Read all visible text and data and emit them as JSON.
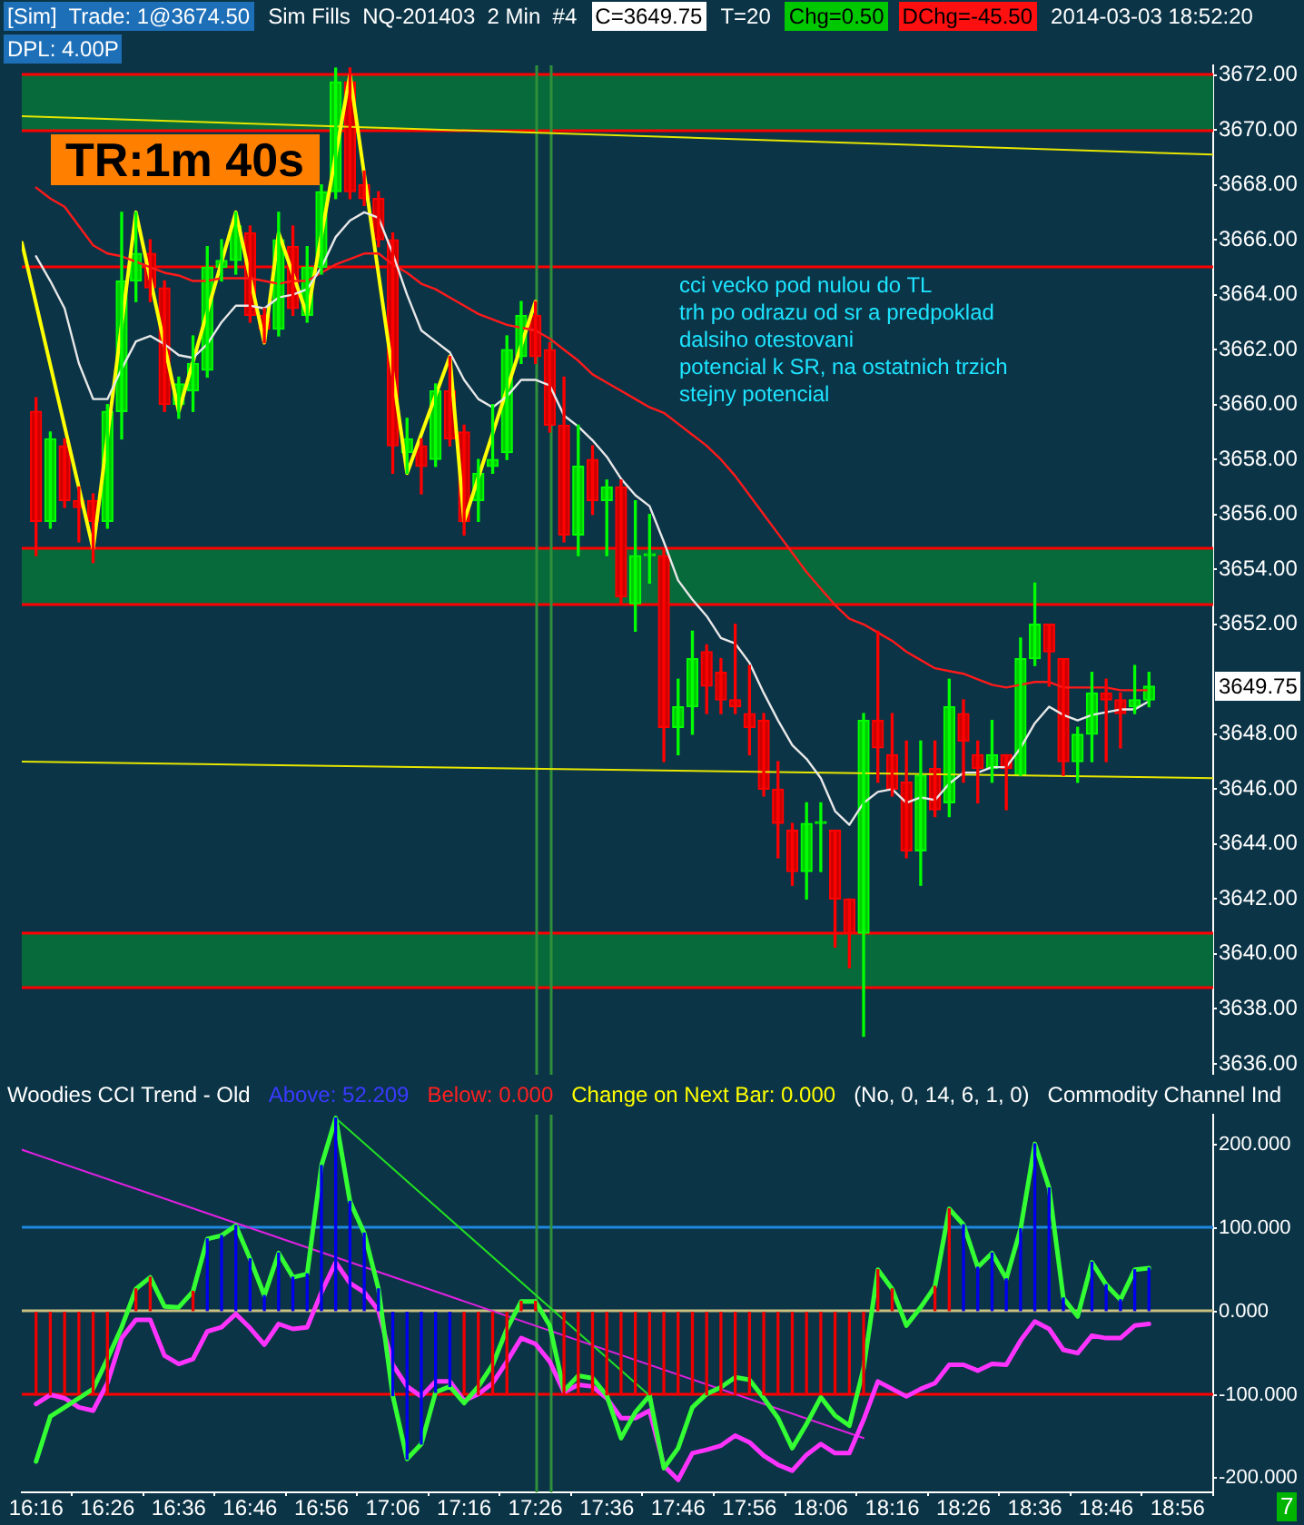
{
  "chart_data": [
    {
      "type": "candlestick",
      "x": [
        "2014-03-03T16:16",
        "2014-03-03T16:18",
        "2014-03-03T16:20",
        "2014-03-03T16:22",
        "2014-03-03T16:24",
        "2014-03-03T16:26",
        "2014-03-03T16:28",
        "2014-03-03T16:30",
        "2014-03-03T16:32",
        "2014-03-03T16:34",
        "2014-03-03T16:36",
        "2014-03-03T16:38",
        "2014-03-03T16:40",
        "2014-03-03T16:42",
        "2014-03-03T16:44",
        "2014-03-03T16:46",
        "2014-03-03T16:48",
        "2014-03-03T16:50",
        "2014-03-03T16:52",
        "2014-03-03T16:54",
        "2014-03-03T16:56",
        "2014-03-03T16:58",
        "2014-03-03T17:00",
        "2014-03-03T17:02",
        "2014-03-03T17:04",
        "2014-03-03T17:06",
        "2014-03-03T17:08",
        "2014-03-03T17:10",
        "2014-03-03T17:12",
        "2014-03-03T17:14",
        "2014-03-03T17:16",
        "2014-03-03T17:18",
        "2014-03-03T17:20",
        "2014-03-03T17:22",
        "2014-03-03T17:24",
        "2014-03-03T17:26",
        "2014-03-03T17:28",
        "2014-03-03T17:30",
        "2014-03-03T17:32",
        "2014-03-03T17:34",
        "2014-03-03T17:36",
        "2014-03-03T17:38",
        "2014-03-03T17:40",
        "2014-03-03T17:42",
        "2014-03-03T17:44",
        "2014-03-03T17:46",
        "2014-03-03T17:48",
        "2014-03-03T17:50",
        "2014-03-03T17:52",
        "2014-03-03T17:54",
        "2014-03-03T17:56",
        "2014-03-03T17:58",
        "2014-03-03T18:00",
        "2014-03-03T18:02",
        "2014-03-03T18:04",
        "2014-03-03T18:06",
        "2014-03-03T18:08",
        "2014-03-03T18:10",
        "2014-03-03T18:12",
        "2014-03-03T18:14",
        "2014-03-03T18:16",
        "2014-03-03T18:18",
        "2014-03-03T18:20",
        "2014-03-03T18:22",
        "2014-03-03T18:24",
        "2014-03-03T18:26",
        "2014-03-03T18:28",
        "2014-03-03T18:30",
        "2014-03-03T18:32",
        "2014-03-03T18:34",
        "2014-03-03T18:36",
        "2014-03-03T18:38",
        "2014-03-03T18:40",
        "2014-03-03T18:42",
        "2014-03-03T18:44",
        "2014-03-03T18:46",
        "2014-03-03T18:48",
        "2014-03-03T18:50",
        "2014-03-03T18:52"
      ],
      "ohlc": [
        [
          3659.75,
          3660.25,
          3654.5,
          3655.75
        ],
        [
          3655.75,
          3659.0,
          3655.5,
          3658.75
        ],
        [
          3658.5,
          3658.75,
          3656.25,
          3656.5
        ],
        [
          3656.5,
          3657.0,
          3655.0,
          3656.25
        ],
        [
          3656.5,
          3656.75,
          3654.25,
          3655.75
        ],
        [
          3655.75,
          3660.0,
          3655.5,
          3659.75
        ],
        [
          3659.75,
          3667.0,
          3658.75,
          3664.5
        ],
        [
          3664.5,
          3667.0,
          3663.75,
          3665.5
        ],
        [
          3665.5,
          3666.0,
          3663.75,
          3664.25
        ],
        [
          3664.25,
          3664.5,
          3659.75,
          3660.0
        ],
        [
          3660.0,
          3661.0,
          3659.5,
          3660.75
        ],
        [
          3660.5,
          3662.5,
          3659.75,
          3661.5
        ],
        [
          3661.25,
          3665.75,
          3661.0,
          3665.0
        ],
        [
          3665.0,
          3666.0,
          3664.5,
          3665.25
        ],
        [
          3665.25,
          3667.0,
          3664.75,
          3666.5
        ],
        [
          3666.25,
          3666.5,
          3663.0,
          3663.25
        ],
        [
          3663.25,
          3663.5,
          3662.25,
          3662.75
        ],
        [
          3662.75,
          3667.0,
          3662.5,
          3666.0
        ],
        [
          3665.75,
          3666.5,
          3663.25,
          3663.5
        ],
        [
          3663.25,
          3665.75,
          3663.0,
          3665.0
        ],
        [
          3665.0,
          3668.0,
          3664.75,
          3667.75
        ],
        [
          3667.75,
          3672.25,
          3667.5,
          3671.75
        ],
        [
          3671.75,
          3672.25,
          3667.5,
          3667.75
        ],
        [
          3668.0,
          3668.5,
          3667.25,
          3667.5
        ],
        [
          3667.5,
          3667.75,
          3665.75,
          3666.0
        ],
        [
          3666.0,
          3666.25,
          3657.5,
          3658.5
        ],
        [
          3658.25,
          3659.5,
          3657.5,
          3658.75
        ],
        [
          3658.5,
          3658.75,
          3656.75,
          3657.75
        ],
        [
          3658.0,
          3660.75,
          3657.75,
          3660.5
        ],
        [
          3660.5,
          3661.75,
          3658.5,
          3658.75
        ],
        [
          3659.0,
          3659.25,
          3655.25,
          3655.75
        ],
        [
          3656.5,
          3658.0,
          3655.75,
          3657.5
        ],
        [
          3657.75,
          3660.0,
          3657.5,
          3658.0
        ],
        [
          3658.25,
          3662.5,
          3658.0,
          3662.0
        ],
        [
          3661.75,
          3663.75,
          3661.5,
          3663.25
        ],
        [
          3663.25,
          3663.75,
          3661.5,
          3661.75
        ],
        [
          3662.0,
          3662.25,
          3659.0,
          3659.25
        ],
        [
          3659.25,
          3661.0,
          3655.0,
          3655.25
        ],
        [
          3655.25,
          3659.25,
          3654.5,
          3657.75
        ],
        [
          3658.0,
          3658.5,
          3656.0,
          3656.5
        ],
        [
          3656.5,
          3657.25,
          3654.5,
          3657.0
        ],
        [
          3657.0,
          3657.25,
          3652.75,
          3653.0
        ],
        [
          3652.75,
          3656.5,
          3651.75,
          3654.5
        ],
        [
          3654.5,
          3656.0,
          3653.5,
          3654.5
        ],
        [
          3654.5,
          3654.75,
          3647.0,
          3648.25
        ],
        [
          3648.25,
          3650.0,
          3647.25,
          3649.0
        ],
        [
          3649.0,
          3651.75,
          3648.0,
          3650.75
        ],
        [
          3651.0,
          3651.25,
          3648.75,
          3649.75
        ],
        [
          3650.25,
          3650.75,
          3648.75,
          3649.25
        ],
        [
          3649.25,
          3652.0,
          3648.75,
          3649.0
        ],
        [
          3648.75,
          3650.5,
          3647.25,
          3648.25
        ],
        [
          3648.5,
          3648.75,
          3645.75,
          3646.0
        ],
        [
          3646.0,
          3647.0,
          3643.5,
          3644.75
        ],
        [
          3644.5,
          3644.75,
          3642.5,
          3643.0
        ],
        [
          3643.0,
          3645.5,
          3642.0,
          3644.75
        ],
        [
          3644.75,
          3645.5,
          3643.0,
          3644.75
        ],
        [
          3644.5,
          3644.5,
          3640.25,
          3642.0
        ],
        [
          3642.0,
          3642.0,
          3639.5,
          3640.75
        ],
        [
          3640.75,
          3648.75,
          3637.0,
          3648.5
        ],
        [
          3648.5,
          3651.75,
          3646.25,
          3647.5
        ],
        [
          3647.25,
          3648.75,
          3645.75,
          3646.0
        ],
        [
          3646.25,
          3647.75,
          3643.5,
          3643.75
        ],
        [
          3643.75,
          3647.75,
          3642.5,
          3646.5
        ],
        [
          3646.75,
          3647.75,
          3645.0,
          3645.25
        ],
        [
          3645.5,
          3650.0,
          3645.0,
          3649.0
        ],
        [
          3648.75,
          3649.25,
          3646.25,
          3647.75
        ],
        [
          3647.25,
          3647.75,
          3645.5,
          3646.75
        ],
        [
          3646.75,
          3648.5,
          3646.25,
          3647.25
        ],
        [
          3647.25,
          3647.25,
          3645.25,
          3646.75
        ],
        [
          3646.5,
          3651.5,
          3646.5,
          3650.75
        ],
        [
          3650.75,
          3653.5,
          3650.5,
          3652.0
        ],
        [
          3652.0,
          3652.0,
          3649.75,
          3651.0
        ],
        [
          3650.75,
          3650.75,
          3646.5,
          3647.0
        ],
        [
          3647.0,
          3648.25,
          3646.25,
          3648.0
        ],
        [
          3648.0,
          3650.25,
          3647.0,
          3649.5
        ],
        [
          3649.5,
          3650.0,
          3647.0,
          3649.25
        ],
        [
          3649.25,
          3649.5,
          3647.5,
          3648.75
        ],
        [
          3649.0,
          3650.5,
          3648.75,
          3649.25
        ],
        [
          3649.25,
          3650.25,
          3649.0,
          3649.75
        ]
      ],
      "colors": [
        "#ff0000",
        "#00ff00",
        "#ff0000",
        "#ff0000",
        "#ff0000",
        "#00ff00",
        "#00ff00",
        "#00ff00",
        "#ff0000",
        "#ff0000",
        "#00ff00",
        "#00ff00",
        "#00ff00",
        "#00ff00",
        "#00ff00",
        "#ff0000",
        "#ff0000",
        "#00ff00",
        "#ff0000",
        "#00ff00",
        "#00ff00",
        "#00ff00",
        "#ff0000",
        "#ff0000",
        "#ff0000",
        "#ff0000",
        "#00ff00",
        "#ff0000",
        "#00ff00",
        "#ff0000",
        "#ff0000",
        "#00ff00",
        "#00ff00",
        "#00ff00",
        "#00ff00",
        "#ff0000",
        "#ff0000",
        "#ff0000",
        "#00ff00",
        "#ff0000",
        "#00ff00",
        "#ff0000",
        "#00ff00",
        "#00ff00",
        "#ff0000",
        "#00ff00",
        "#00ff00",
        "#ff0000",
        "#ff0000",
        "#ff0000",
        "#ff0000",
        "#ff0000",
        "#ff0000",
        "#ff0000",
        "#00ff00",
        "#00ff00",
        "#ff0000",
        "#ff0000",
        "#00ff00",
        "#ff0000",
        "#ff0000",
        "#ff0000",
        "#00ff00",
        "#ff0000",
        "#00ff00",
        "#ff0000",
        "#ff0000",
        "#00ff00",
        "#ff0000",
        "#00ff00",
        "#00ff00",
        "#ff0000",
        "#ff0000",
        "#00ff00",
        "#00ff00",
        "#ff0000",
        "#ff0000",
        "#00ff00",
        "#00ff00"
      ],
      "series": [
        {
          "type": "line",
          "color": "#e8e8e8",
          "values": [
            3665.4,
            3664.5,
            3663.5,
            3661.5,
            3660.2,
            3660.2,
            3661.3,
            3662.3,
            3662.5,
            3662.2,
            3661.8,
            3661.7,
            3662.2,
            3663.0,
            3663.6,
            3663.6,
            3663.5,
            3663.9,
            3664.0,
            3664.2,
            3665.0,
            3666.1,
            3666.7,
            3667.0,
            3666.8,
            3665.5,
            3664.0,
            3662.7,
            3662.3,
            3661.9,
            3660.9,
            3660.2,
            3659.9,
            3660.3,
            3660.9,
            3660.9,
            3660.7,
            3659.6,
            3659.2,
            3658.7,
            3658.1,
            3657.3,
            3656.7,
            3656.3,
            3655.0,
            3653.6,
            3652.9,
            3652.3,
            3651.5,
            3651.3,
            3650.6,
            3649.5,
            3648.5,
            3647.6,
            3647.1,
            3646.4,
            3645.2,
            3644.7,
            3645.5,
            3645.9,
            3646.0,
            3645.5,
            3645.7,
            3645.6,
            3646.2,
            3646.6,
            3646.6,
            3646.8,
            3646.8,
            3647.5,
            3648.4,
            3649.0,
            3648.7,
            3648.5,
            3648.7,
            3648.8,
            3648.9,
            3648.9,
            3649.2
          ]
        },
        {
          "type": "line",
          "color": "#ff1a1a",
          "values": [
            3667.9,
            3667.5,
            3667.2,
            3666.5,
            3665.8,
            3665.5,
            3665.4,
            3665.2,
            3665.0,
            3664.8,
            3664.7,
            3664.5,
            3664.5,
            3664.6,
            3664.6,
            3664.6,
            3664.5,
            3664.4,
            3664.5,
            3664.5,
            3664.8,
            3665.1,
            3665.3,
            3665.5,
            3665.5,
            3665.1,
            3664.8,
            3664.4,
            3664.2,
            3663.9,
            3663.6,
            3663.3,
            3663.1,
            3662.9,
            3662.8,
            3662.7,
            3662.4,
            3662.0,
            3661.6,
            3661.1,
            3660.8,
            3660.5,
            3660.2,
            3659.9,
            3659.7,
            3659.3,
            3658.9,
            3658.5,
            3658.0,
            3657.4,
            3656.7,
            3656.0,
            3655.3,
            3654.6,
            3653.9,
            3653.3,
            3652.7,
            3652.2,
            3652.0,
            3651.7,
            3651.4,
            3651.0,
            3650.7,
            3650.4,
            3650.3,
            3650.2,
            3650.0,
            3649.8,
            3649.7,
            3649.8,
            3649.9,
            3649.9,
            3649.7,
            3649.7,
            3649.7,
            3649.7,
            3649.6,
            3649.6,
            3649.6
          ]
        },
        {
          "type": "line",
          "color": "#ffff00",
          "x": [
            "2014-03-03T16:14",
            "2014-03-03T16:24",
            "2014-03-03T16:30",
            "2014-03-03T16:36",
            "2014-03-03T16:44",
            "2014-03-03T16:48",
            "2014-03-03T16:50",
            "2014-03-03T16:54",
            "2014-03-03T17:00",
            "2014-03-03T17:08",
            "2014-03-03T17:14",
            "2014-03-03T17:16",
            "2014-03-03T17:26"
          ],
          "values": [
            3665.9,
            3654.75,
            3667.0,
            3659.75,
            3667.0,
            3662.25,
            3666.25,
            3663.25,
            3672.0,
            3657.5,
            3661.75,
            3655.75,
            3663.75
          ]
        },
        {
          "type": "line",
          "color": "#e6e600",
          "x": [
            "2014-03-03T16:14",
            "2014-03-03T19:01"
          ],
          "values": [
            3670.5,
            3669.1
          ]
        },
        {
          "type": "line",
          "color": "#e6e600",
          "x": [
            "2014-03-03T16:14",
            "2014-03-03T19:01"
          ],
          "values": [
            3647.0,
            3646.4
          ]
        }
      ],
      "bands": [
        {
          "axis": "y",
          "from": 3670,
          "to": 3672,
          "color": "#076a3a"
        },
        {
          "axis": "y",
          "from": 3652.75,
          "to": 3654.75,
          "color": "#076a3a"
        },
        {
          "axis": "y",
          "from": 3638.75,
          "to": 3640.75,
          "color": "#076a3a"
        }
      ],
      "ref_lines": [
        {
          "axis": "y",
          "value": 3665,
          "color": "#ff0000"
        },
        {
          "axis": "y",
          "value": 3672,
          "color": "#ff0000"
        },
        {
          "axis": "y",
          "value": 3670,
          "color": "#ff0000"
        },
        {
          "axis": "y",
          "value": 3654.75,
          "color": "#ff0000"
        },
        {
          "axis": "y",
          "value": 3652.75,
          "color": "#ff0000"
        },
        {
          "axis": "y",
          "value": 3640.75,
          "color": "#ff0000"
        },
        {
          "axis": "y",
          "value": 3638.75,
          "color": "#ff0000"
        },
        {
          "axis": "x",
          "value": "2014-03-03T17:26",
          "color": "#2f8f3a"
        },
        {
          "axis": "x",
          "value": "2014-03-03T17:28",
          "color": "#2f8f3a"
        }
      ],
      "xlim": [
        "2014-03-03T16:14",
        "2014-03-03T19:01"
      ],
      "ylim": [
        3635.6,
        3672.35
      ],
      "yticks": [
        {
          "value": 3636,
          "label": "3636.00"
        },
        {
          "value": 3638,
          "label": "3638.00"
        },
        {
          "value": 3640,
          "label": "3640.00"
        },
        {
          "value": 3642,
          "label": "3642.00"
        },
        {
          "value": 3644,
          "label": "3644.00"
        },
        {
          "value": 3646,
          "label": "3646.00"
        },
        {
          "value": 3648,
          "label": "3648.00"
        },
        {
          "value": 3652,
          "label": "3652.00"
        },
        {
          "value": 3654,
          "label": "3654.00"
        },
        {
          "value": 3656,
          "label": "3656.00"
        },
        {
          "value": 3658,
          "label": "3658.00"
        },
        {
          "value": 3660,
          "label": "3660.00"
        },
        {
          "value": 3662,
          "label": "3662.00"
        },
        {
          "value": 3664,
          "label": "3664.00"
        },
        {
          "value": 3666,
          "label": "3666.00"
        },
        {
          "value": 3668,
          "label": "3668.00"
        },
        {
          "value": 3670,
          "label": "3670.00"
        },
        {
          "value": 3672,
          "label": "3672.00"
        }
      ],
      "tick_labels": "y",
      "annotations": [
        "[Sim]  Trade: 1@3674.50",
        "Sim Fills  NQ-201403  2 Min  #4",
        "C=3649.75",
        "T=20",
        "Chg=0.50",
        "DChg=-45.50",
        "2014-03-03 18:52:20",
        "DPL: 4.00P",
        "TR:1m 40s",
        "cci vecko pod nulou do TL\ntrh po odrazu od sr a predpoklad\ndalsiho otestovani\npotencial k SR, na ostatnich trzich\nstejny potencial",
        "3649.75"
      ]
    },
    {
      "type": "line",
      "title": "Woodies CCI Trend - Old",
      "x": [
        "2014-03-03T16:16",
        "2014-03-03T16:18",
        "2014-03-03T16:20",
        "2014-03-03T16:22",
        "2014-03-03T16:24",
        "2014-03-03T16:26",
        "2014-03-03T16:28",
        "2014-03-03T16:30",
        "2014-03-03T16:32",
        "2014-03-03T16:34",
        "2014-03-03T16:36",
        "2014-03-03T16:38",
        "2014-03-03T16:40",
        "2014-03-03T16:42",
        "2014-03-03T16:44",
        "2014-03-03T16:46",
        "2014-03-03T16:48",
        "2014-03-03T16:50",
        "2014-03-03T16:52",
        "2014-03-03T16:54",
        "2014-03-03T16:56",
        "2014-03-03T16:58",
        "2014-03-03T17:00",
        "2014-03-03T17:02",
        "2014-03-03T17:04",
        "2014-03-03T17:06",
        "2014-03-03T17:08",
        "2014-03-03T17:10",
        "2014-03-03T17:12",
        "2014-03-03T17:14",
        "2014-03-03T17:16",
        "2014-03-03T17:18",
        "2014-03-03T17:20",
        "2014-03-03T17:22",
        "2014-03-03T17:24",
        "2014-03-03T17:26",
        "2014-03-03T17:28",
        "2014-03-03T17:30",
        "2014-03-03T17:32",
        "2014-03-03T17:34",
        "2014-03-03T17:36",
        "2014-03-03T17:38",
        "2014-03-03T17:40",
        "2014-03-03T17:42",
        "2014-03-03T17:44",
        "2014-03-03T17:46",
        "2014-03-03T17:48",
        "2014-03-03T17:50",
        "2014-03-03T17:52",
        "2014-03-03T17:54",
        "2014-03-03T17:56",
        "2014-03-03T17:58",
        "2014-03-03T18:00",
        "2014-03-03T18:02",
        "2014-03-03T18:04",
        "2014-03-03T18:06",
        "2014-03-03T18:08",
        "2014-03-03T18:10",
        "2014-03-03T18:12",
        "2014-03-03T18:14",
        "2014-03-03T18:16",
        "2014-03-03T18:18",
        "2014-03-03T18:20",
        "2014-03-03T18:22",
        "2014-03-03T18:24",
        "2014-03-03T18:26",
        "2014-03-03T18:28",
        "2014-03-03T18:30",
        "2014-03-03T18:32",
        "2014-03-03T18:34",
        "2014-03-03T18:36",
        "2014-03-03T18:38",
        "2014-03-03T18:40",
        "2014-03-03T18:42",
        "2014-03-03T18:44",
        "2014-03-03T18:46",
        "2014-03-03T18:48",
        "2014-03-03T18:50",
        "2014-03-03T18:52"
      ],
      "series": [
        {
          "type": "bar",
          "colors": [
            "#ee0000",
            "#ee0000",
            "#ee0000",
            "#ee0000",
            "#ee0000",
            "#ee0000",
            "#ee0000",
            "#ee0000",
            "#ee0000",
            "#ee0000",
            "#ee0000",
            "#ee0000",
            "#0000ee",
            "#0000ee",
            "#0000ee",
            "#0000ee",
            "#0000ee",
            "#0000ee",
            "#0000ee",
            "#0000ee",
            "#0000ee",
            "#0000ee",
            "#0000ee",
            "#0000ee",
            "#0000ee",
            "#0000ee",
            "#0000ee",
            "#0000ee",
            "#0000ee",
            "#0000ee",
            "#ee0000",
            "#ee0000",
            "#ee0000",
            "#ee0000",
            "#ee0000",
            "#ee0000",
            "#ee0000",
            "#ee0000",
            "#ee0000",
            "#ee0000",
            "#ee0000",
            "#ee0000",
            "#ee0000",
            "#ee0000",
            "#ee0000",
            "#ee0000",
            "#ee0000",
            "#ee0000",
            "#ee0000",
            "#ee0000",
            "#ee0000",
            "#ee0000",
            "#ee0000",
            "#ee0000",
            "#ee0000",
            "#ee0000",
            "#ee0000",
            "#ee0000",
            "#ee0000",
            "#ee0000",
            "#ee0000",
            "#ee0000",
            "#ee0000",
            "#ee0000",
            "#ee0000",
            "#0000ee",
            "#0000ee",
            "#0000ee",
            "#0000ee",
            "#0000ee",
            "#0000ee",
            "#0000ee",
            "#0000ee",
            "#0000ee",
            "#0000ee",
            "#0000ee",
            "#0000ee",
            "#0000ee",
            "#0000ee"
          ],
          "values": [
            -100,
            -100,
            -100,
            -100,
            -100,
            -100,
            null,
            27,
            41,
            null,
            null,
            24,
            87,
            91,
            103,
            63,
            19,
            70,
            41,
            45,
            175,
            232,
            132,
            94,
            27,
            -101,
            -177,
            -159,
            -97,
            -90,
            -100,
            -100,
            -100,
            -100,
            12,
            12,
            null,
            -100,
            -100,
            -100,
            -100,
            -100,
            -100,
            -100,
            -100,
            -100,
            -100,
            -100,
            -100,
            -100,
            -100,
            -100,
            -100,
            -100,
            -100,
            -100,
            -100,
            -100,
            -100,
            50,
            27,
            null,
            null,
            30,
            123,
            104,
            53,
            70,
            39,
            99,
            201,
            148,
            16,
            null,
            59,
            32,
            14,
            50,
            52
          ]
        },
        {
          "type": "line",
          "color": "#33ff33",
          "values": [
            -180,
            -126,
            -115,
            -104,
            -93,
            -57,
            -19,
            27,
            41,
            6,
            5,
            24,
            87,
            91,
            103,
            63,
            19,
            70,
            41,
            45,
            175,
            232,
            132,
            94,
            27,
            -101,
            -177,
            -159,
            -97,
            -90,
            -110,
            -90,
            -64,
            -21,
            12,
            12,
            -17,
            -95,
            -77,
            -80,
            -101,
            -152,
            -121,
            -101,
            -188,
            -164,
            -115,
            -99,
            -91,
            -79,
            -82,
            -104,
            -128,
            -164,
            -135,
            -103,
            -125,
            -137,
            -68,
            50,
            27,
            -17,
            5,
            30,
            123,
            104,
            53,
            70,
            39,
            99,
            201,
            148,
            16,
            -6,
            59,
            32,
            14,
            50,
            52
          ]
        },
        {
          "type": "line",
          "color": "#ff33ff",
          "values": [
            -111,
            -100,
            -104,
            -115,
            -119,
            -86,
            -32,
            -10,
            -10,
            -53,
            -63,
            -57,
            -24,
            -19,
            -3,
            -20,
            -40,
            -15,
            -21,
            -19,
            23,
            59,
            34,
            23,
            1,
            -64,
            -90,
            -102,
            -84,
            -84,
            -107,
            -99,
            -86,
            -60,
            -32,
            -39,
            -60,
            -97,
            -88,
            -90,
            -104,
            -128,
            -128,
            -119,
            -185,
            -202,
            -170,
            -166,
            -161,
            -149,
            -157,
            -173,
            -184,
            -191,
            -172,
            -159,
            -170,
            -170,
            -130,
            -84,
            -93,
            -102,
            -93,
            -86,
            -64,
            -64,
            -71,
            -63,
            -64,
            -35,
            -12,
            -21,
            -46,
            -50,
            -29,
            -32,
            -32,
            -17,
            -15
          ]
        },
        {
          "type": "line",
          "color": "#e020e0",
          "x": [
            "2014-03-03T16:14",
            "2014-03-03T18:12"
          ],
          "values": [
            194,
            -152
          ]
        },
        {
          "type": "line",
          "color": "#22e022",
          "x": [
            "2014-03-03T16:58",
            "2014-03-03T17:42"
          ],
          "values": [
            232,
            -101
          ]
        }
      ],
      "ref_lines": [
        {
          "axis": "y",
          "value": 100,
          "color": "#1e88e0"
        },
        {
          "axis": "y",
          "value": 0,
          "color": "#c8bf80"
        },
        {
          "axis": "y",
          "value": -100,
          "color": "#ff0000"
        },
        {
          "axis": "x",
          "value": "2014-03-03T17:26",
          "color": "#2f8f3a"
        },
        {
          "axis": "x",
          "value": "2014-03-03T17:28",
          "color": "#2f8f3a"
        }
      ],
      "xlim": [
        "2014-03-03T16:14",
        "2014-03-03T19:01"
      ],
      "xticks": [
        {
          "value": "2014-03-03T16:16",
          "label": "16:16"
        },
        {
          "value": "2014-03-03T16:26",
          "label": "16:26"
        },
        {
          "value": "2014-03-03T16:36",
          "label": "16:36"
        },
        {
          "value": "2014-03-03T16:46",
          "label": "16:46"
        },
        {
          "value": "2014-03-03T16:56",
          "label": "16:56"
        },
        {
          "value": "2014-03-03T17:06",
          "label": "17:06"
        },
        {
          "value": "2014-03-03T17:16",
          "label": "17:16"
        },
        {
          "value": "2014-03-03T17:26",
          "label": "17:26"
        },
        {
          "value": "2014-03-03T17:36",
          "label": "17:36"
        },
        {
          "value": "2014-03-03T17:46",
          "label": "17:46"
        },
        {
          "value": "2014-03-03T17:56",
          "label": "17:56"
        },
        {
          "value": "2014-03-03T18:06",
          "label": "18:06"
        },
        {
          "value": "2014-03-03T18:16",
          "label": "18:16"
        },
        {
          "value": "2014-03-03T18:26",
          "label": "18:26"
        },
        {
          "value": "2014-03-03T18:36",
          "label": "18:36"
        },
        {
          "value": "2014-03-03T18:46",
          "label": "18:46"
        },
        {
          "value": "2014-03-03T18:56",
          "label": "18:56"
        }
      ],
      "ylim": [
        -217,
        236
      ],
      "yticks": [
        {
          "value": -200,
          "label": "-200.000"
        },
        {
          "value": -100,
          "label": "-100.000"
        },
        {
          "value": 0,
          "label": "0.000"
        },
        {
          "value": 100,
          "label": "100.000"
        },
        {
          "value": 200,
          "label": "200.000"
        }
      ],
      "annotations": [
        "Above: 52.209",
        "Below: 0.000",
        "Change on Next Bar: 0.000",
        "(No, 0, 14, 6, 1, 0)",
        "Commodity Channel Ind",
        "7"
      ]
    }
  ]
}
